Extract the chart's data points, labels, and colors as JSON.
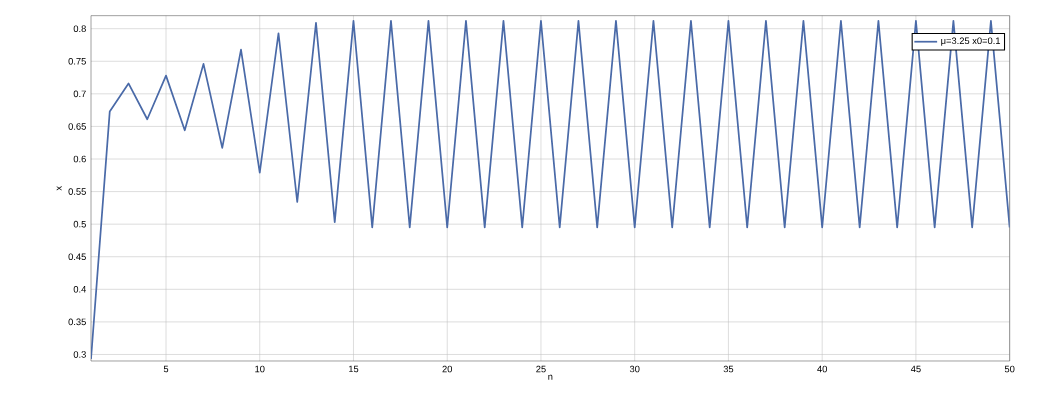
{
  "chart_data": {
    "type": "line",
    "xlabel": "n",
    "ylabel": "x",
    "x": [
      1,
      2,
      3,
      4,
      5,
      6,
      7,
      8,
      9,
      10,
      11,
      12,
      13,
      14,
      15,
      16,
      17,
      18,
      19,
      20,
      21,
      22,
      23,
      24,
      25,
      26,
      27,
      28,
      29,
      30,
      31,
      32,
      33,
      34,
      35,
      36,
      37,
      38,
      39,
      40,
      41,
      42,
      43,
      44,
      45,
      46,
      47,
      48,
      49,
      50
    ],
    "series": [
      {
        "name": "μ=3.25 x0=0.1",
        "color": "#4a6aa8",
        "values": [
          0.293,
          0.673,
          0.716,
          0.661,
          0.728,
          0.644,
          0.746,
          0.617,
          0.768,
          0.579,
          0.793,
          0.534,
          0.809,
          0.503,
          0.812,
          0.495,
          0.812,
          0.495,
          0.812,
          0.495,
          0.812,
          0.495,
          0.812,
          0.495,
          0.812,
          0.495,
          0.812,
          0.495,
          0.812,
          0.495,
          0.812,
          0.495,
          0.812,
          0.495,
          0.812,
          0.495,
          0.812,
          0.495,
          0.812,
          0.495,
          0.812,
          0.495,
          0.812,
          0.495,
          0.812,
          0.495,
          0.812,
          0.495,
          0.812,
          0.495
        ]
      }
    ],
    "xlim": [
      1,
      50
    ],
    "xticks": [
      5,
      10,
      15,
      20,
      25,
      30,
      35,
      40,
      45,
      50
    ],
    "ylim": [
      0.29,
      0.82
    ],
    "yticks": [
      0.3,
      0.35,
      0.4,
      0.45,
      0.5,
      0.55,
      0.6,
      0.65,
      0.7,
      0.75,
      0.8
    ],
    "grid": true,
    "legend": "top right",
    "marker": "none",
    "line_style": "solid"
  }
}
